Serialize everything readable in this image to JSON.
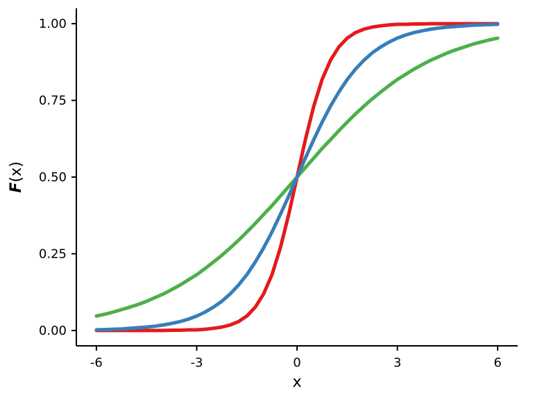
{
  "chart_data": {
    "type": "line",
    "title": "",
    "xlabel": "x",
    "ylabel": "F(x)",
    "xlim": [
      -6,
      6
    ],
    "ylim": [
      0,
      1
    ],
    "x_ticks": [
      -6,
      -3,
      0,
      3,
      6
    ],
    "x_tick_labels": [
      "-6",
      "-3",
      "0",
      "3",
      "6"
    ],
    "y_ticks": [
      0,
      0.25,
      0.5,
      0.75,
      1
    ],
    "y_tick_labels": [
      "0.00",
      "0.25",
      "0.50",
      "0.75",
      "1.00"
    ],
    "grid": false,
    "legend": "none",
    "x": [
      -6,
      -5.75,
      -5.5,
      -5.25,
      -5,
      -4.75,
      -4.5,
      -4.25,
      -4,
      -3.75,
      -3.5,
      -3.25,
      -3,
      -2.75,
      -2.5,
      -2.25,
      -2,
      -1.75,
      -1.5,
      -1.25,
      -1,
      -0.75,
      -0.5,
      -0.25,
      0,
      0.25,
      0.5,
      0.75,
      1,
      1.25,
      1.5,
      1.75,
      2,
      2.25,
      2.5,
      2.75,
      3,
      3.25,
      3.5,
      3.75,
      4,
      4.25,
      4.5,
      4.75,
      5,
      5.25,
      5.5,
      5.75,
      6
    ],
    "series": [
      {
        "name": "green-shallow",
        "color": "#4DAF4A",
        "values": [
          0.047,
          0.053,
          0.06,
          0.068,
          0.076,
          0.085,
          0.095,
          0.107,
          0.119,
          0.133,
          0.148,
          0.165,
          0.182,
          0.202,
          0.223,
          0.245,
          0.269,
          0.294,
          0.321,
          0.349,
          0.378,
          0.407,
          0.438,
          0.469,
          0.5,
          0.531,
          0.562,
          0.593,
          0.622,
          0.651,
          0.679,
          0.706,
          0.731,
          0.755,
          0.777,
          0.798,
          0.818,
          0.835,
          0.852,
          0.867,
          0.881,
          0.893,
          0.905,
          0.915,
          0.924,
          0.933,
          0.94,
          0.947,
          0.953
        ]
      },
      {
        "name": "red-steep",
        "color": "#E41A1C",
        "values": [
          0,
          0,
          0,
          0,
          0,
          0,
          0,
          0,
          0,
          0.001,
          0.001,
          0.002,
          0.002,
          0.004,
          0.007,
          0.011,
          0.018,
          0.029,
          0.047,
          0.076,
          0.119,
          0.182,
          0.269,
          0.378,
          0.5,
          0.622,
          0.731,
          0.818,
          0.881,
          0.924,
          0.953,
          0.971,
          0.982,
          0.989,
          0.993,
          0.996,
          0.998,
          0.998,
          0.999,
          0.999,
          1,
          1,
          1,
          1,
          1,
          1,
          1,
          1,
          1
        ]
      },
      {
        "name": "blue-medium",
        "color": "#377EB8",
        "values": [
          0.002,
          0.003,
          0.004,
          0.005,
          0.007,
          0.009,
          0.011,
          0.014,
          0.018,
          0.023,
          0.029,
          0.037,
          0.047,
          0.06,
          0.076,
          0.095,
          0.119,
          0.148,
          0.182,
          0.223,
          0.269,
          0.321,
          0.378,
          0.438,
          0.5,
          0.562,
          0.622,
          0.679,
          0.731,
          0.777,
          0.818,
          0.852,
          0.881,
          0.905,
          0.924,
          0.94,
          0.953,
          0.963,
          0.971,
          0.977,
          0.982,
          0.986,
          0.989,
          0.991,
          0.993,
          0.995,
          0.996,
          0.997,
          0.998
        ]
      }
    ]
  },
  "style": {
    "background": "#FFFFFF",
    "axis_color": "#000000",
    "text_color": "#000000",
    "line_width": 5
  }
}
